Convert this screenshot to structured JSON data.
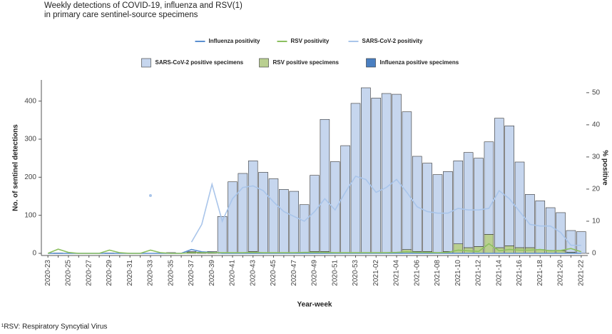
{
  "chart_data": {
    "type": "bar",
    "title": "Weekly detections of COVID-19, influenza and RSV(1)",
    "subtitle": "in primary care sentinel-source specimens",
    "xlabel": "Year-week",
    "ylabel": "No. of sentinel detections",
    "y2label": "% positive",
    "footnote": "¹RSV: Respiratory Syncytial Virus",
    "stacked": true,
    "categories": [
      "2020-23",
      null,
      "2020-25",
      null,
      "2020-27",
      null,
      "2020-29",
      null,
      "2020-31",
      null,
      "2020-33",
      null,
      "2020-35",
      null,
      "2020-37",
      null,
      "2020-39",
      null,
      "2020-41",
      null,
      "2020-43",
      null,
      "2020-45",
      null,
      "2020-47",
      null,
      "2020-49",
      null,
      "2020-51",
      null,
      "2020-53",
      null,
      "2021-02",
      null,
      "2021-04",
      null,
      "2021-06",
      null,
      "2021-08",
      null,
      "2021-10",
      null,
      "2021-12",
      null,
      "2021-14",
      null,
      "2021-16",
      null,
      "2021-18",
      null,
      "2021-20",
      null,
      "2021-22"
    ],
    "series": [
      {
        "name": "Influenza positivity",
        "type": "line",
        "axis": "y2",
        "color": "#5b8fd0",
        "values": [
          0,
          0,
          0,
          0,
          0,
          0,
          0,
          0,
          0,
          0,
          0,
          0,
          0,
          0,
          1.2,
          0.5,
          0.3,
          0,
          0,
          0,
          0,
          0,
          0,
          0,
          0,
          0,
          0,
          0,
          0,
          0,
          0,
          0,
          0,
          0,
          0,
          0,
          0,
          0,
          0,
          0,
          0,
          0,
          0,
          0,
          0,
          0,
          0,
          0,
          0,
          0,
          0,
          0,
          0
        ]
      },
      {
        "name": "RSV positivity",
        "type": "line",
        "axis": "y2",
        "color": "#8cc060",
        "values": [
          0,
          1.3,
          0.3,
          0,
          0,
          0,
          1,
          0.2,
          0,
          0,
          1,
          0.2,
          0,
          0,
          0.2,
          0.2,
          0.2,
          0.2,
          0.2,
          0.2,
          0.3,
          0.2,
          0.2,
          0.2,
          0.2,
          0.3,
          0.3,
          0.3,
          0.2,
          0.2,
          0.2,
          0.2,
          0.2,
          0.2,
          0.3,
          0.5,
          0.3,
          0.3,
          0.2,
          0.3,
          1,
          0.8,
          0.6,
          3,
          0.8,
          1.2,
          1,
          1,
          1.2,
          0.8,
          0.9,
          1.5,
          0.5
        ]
      },
      {
        "name": "SARS-CoV-2 positivity",
        "type": "line",
        "axis": "y2",
        "color": "#a9c5ea",
        "values": [
          null,
          null,
          null,
          null,
          null,
          null,
          null,
          null,
          null,
          null,
          18,
          null,
          null,
          null,
          3.5,
          9,
          21.5,
          10,
          17,
          20.5,
          21,
          19.5,
          16,
          13,
          11.5,
          10,
          13,
          17,
          13.5,
          19,
          24,
          23,
          19,
          20.5,
          23,
          19,
          14.5,
          13,
          12.5,
          12.5,
          14,
          13.5,
          13.5,
          14,
          19.5,
          17,
          13,
          9,
          8.5,
          8.5,
          6.5,
          2.5,
          2.5
        ]
      },
      {
        "name": "Influenza positive specimens",
        "type": "bar",
        "color": "#4a7fc1",
        "values": [
          0,
          0,
          0,
          0,
          0,
          0,
          0,
          0,
          0,
          0,
          0,
          0,
          0,
          0,
          3,
          1,
          1,
          0,
          0,
          0,
          0,
          0,
          0,
          0,
          0,
          0,
          0,
          0,
          0,
          0,
          0,
          0,
          0,
          0,
          0,
          0,
          0,
          0,
          0,
          0,
          0,
          0,
          0,
          0,
          0,
          0,
          0,
          0,
          0,
          0,
          0,
          0,
          0
        ]
      },
      {
        "name": "RSV positive specimens",
        "type": "bar",
        "color": "#b9cf90",
        "values": [
          0,
          1,
          0,
          0,
          0,
          0,
          1,
          0,
          0,
          0,
          0,
          0,
          2,
          0,
          0,
          0,
          0,
          0,
          0,
          0,
          5,
          0,
          0,
          0,
          0,
          0,
          5,
          5,
          0,
          0,
          0,
          0,
          0,
          0,
          3,
          10,
          5,
          5,
          0,
          5,
          25,
          15,
          18,
          50,
          15,
          20,
          15,
          15,
          10,
          8,
          7,
          3,
          0
        ]
      },
      {
        "name": "SARS-CoV-2 positive specimens",
        "type": "bar",
        "color": "#c6d6ee",
        "values": [
          0,
          0,
          0,
          0,
          0,
          0,
          0,
          0,
          0,
          0,
          0,
          0,
          0,
          0,
          2,
          2,
          4,
          97,
          188,
          210,
          238,
          213,
          196,
          168,
          163,
          128,
          200,
          347,
          241,
          283,
          394,
          435,
          408,
          420,
          415,
          362,
          250,
          232,
          207,
          210,
          218,
          250,
          232,
          243,
          340,
          315,
          225,
          140,
          128,
          112,
          100,
          57,
          57
        ]
      }
    ],
    "ylim": [
      0,
      450
    ],
    "yticks": [
      0,
      100,
      200,
      300,
      400
    ],
    "y2lim": [
      0,
      53.3
    ],
    "y2ticks": [
      0,
      10,
      20,
      30,
      40,
      50
    ]
  }
}
